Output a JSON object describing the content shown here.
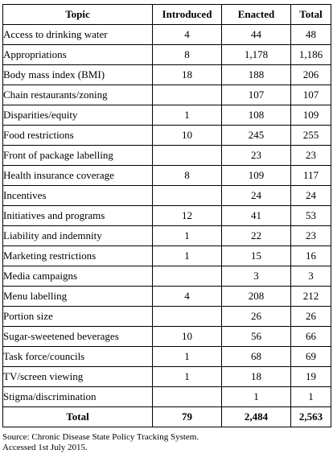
{
  "table": {
    "headers": [
      "Topic",
      "Introduced",
      "Enacted",
      "Total"
    ],
    "rows": [
      [
        "Access to drinking water",
        "4",
        "44",
        "48"
      ],
      [
        "Appropriations",
        "8",
        "1,178",
        "1,186"
      ],
      [
        "Body mass index (BMI)",
        "18",
        "188",
        "206"
      ],
      [
        "Chain restaurants/zoning",
        "",
        "107",
        "107"
      ],
      [
        "Disparities/equity",
        "1",
        "108",
        "109"
      ],
      [
        "Food restrictions",
        "10",
        "245",
        "255"
      ],
      [
        "Front of package labelling",
        "",
        "23",
        "23"
      ],
      [
        "Health insurance coverage",
        "8",
        "109",
        "117"
      ],
      [
        "Incentives",
        "",
        "24",
        "24"
      ],
      [
        "Initiatives and programs",
        "12",
        "41",
        "53"
      ],
      [
        "Liability and indemnity",
        "1",
        "22",
        "23"
      ],
      [
        "Marketing restrictions",
        "1",
        "15",
        "16"
      ],
      [
        "Media campaigns",
        "",
        "3",
        "3"
      ],
      [
        "Menu labelling",
        "4",
        "208",
        "212"
      ],
      [
        "Portion size",
        "",
        "26",
        "26"
      ],
      [
        "Sugar-sweetened beverages",
        "10",
        "56",
        "66"
      ],
      [
        "Task force/councils",
        "1",
        "68",
        "69"
      ],
      [
        "TV/screen viewing",
        "1",
        "18",
        "19"
      ],
      [
        "Stigma/discrimination",
        "",
        "1",
        "1"
      ]
    ],
    "total": [
      "Total",
      "79",
      "2,484",
      "2,563"
    ]
  },
  "source": {
    "line1": "Source: Chronic Disease State Policy Tracking System.",
    "line2": "Accessed 1st July 2015."
  }
}
